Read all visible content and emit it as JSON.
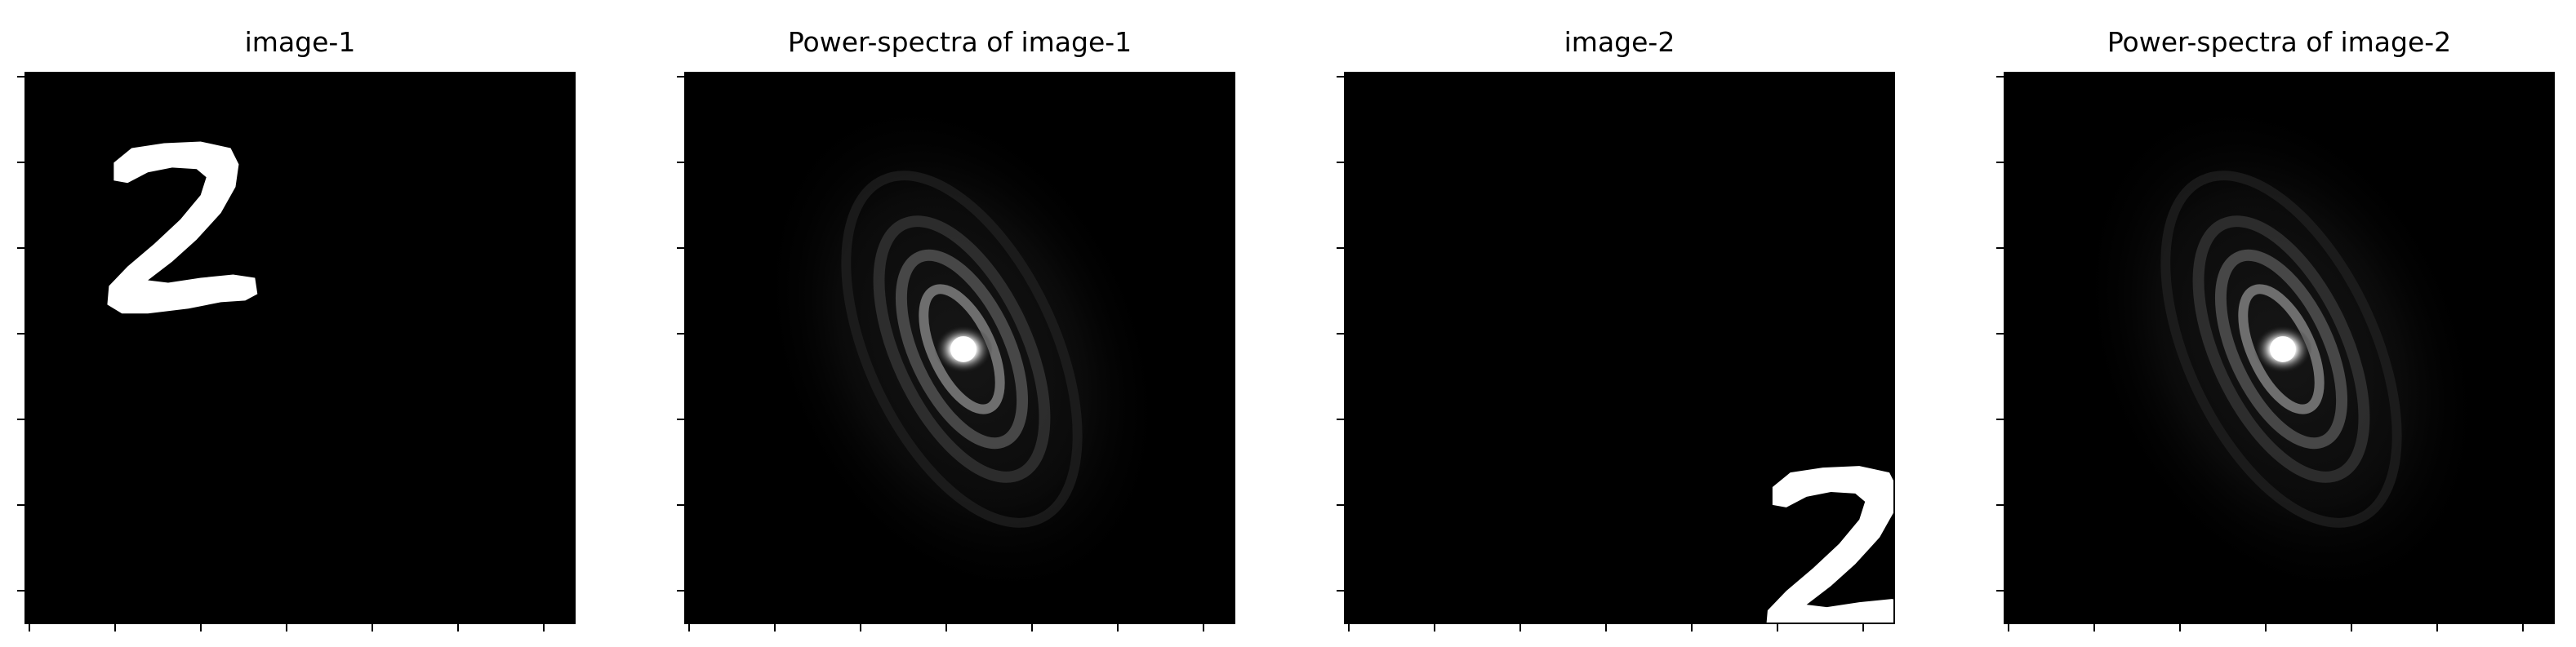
{
  "figure": {
    "panels": [
      {
        "id": "p1",
        "title": "image-1",
        "kind": "digit",
        "digit_position": "top-left"
      },
      {
        "id": "p2",
        "title": "Power-spectra of image-1",
        "kind": "spectrum"
      },
      {
        "id": "p3",
        "title": "image-2",
        "kind": "digit",
        "digit_position": "bottom-right"
      },
      {
        "id": "p4",
        "title": "Power-spectra of image-2",
        "kind": "spectrum"
      }
    ],
    "colors": {
      "background": "#ffffff",
      "image_background": "#000000",
      "foreground": "#ffffff",
      "colormap": "gray"
    },
    "y_ticks_per_panel": 7,
    "x_ticks_per_panel": 7
  }
}
